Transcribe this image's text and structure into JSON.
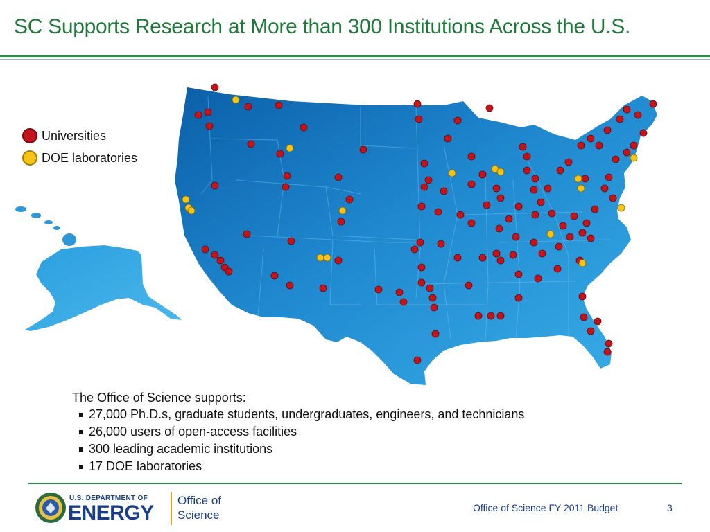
{
  "title": "SC Supports Research at More than 300 Institutions Across the U.S.",
  "legend": [
    {
      "label": "Universities",
      "color": "#c4141b"
    },
    {
      "label": "DOE laboratories",
      "color": "#f6c417"
    }
  ],
  "colors": {
    "title_green": "#1f7a3a",
    "map_blue": "#1f88cf",
    "university_pin": "#c4141b",
    "lab_pin": "#f6c417",
    "footer_blue": "#163a8a"
  },
  "body": {
    "intro": "The Office of Science supports:",
    "bullets": [
      "27,000 Ph.D.s, graduate students, undergraduates, engineers, and technicians",
      "26,000 users of open-access facilities",
      "300 leading academic institutions",
      "17 DOE laboratories"
    ]
  },
  "footer": {
    "doe_small": "U.S. DEPARTMENT OF",
    "doe_big": "ENERGY",
    "office_line1": "Office of",
    "office_line2": "Science",
    "budget": "Office of Science FY 2011 Budget",
    "page": "3"
  }
}
